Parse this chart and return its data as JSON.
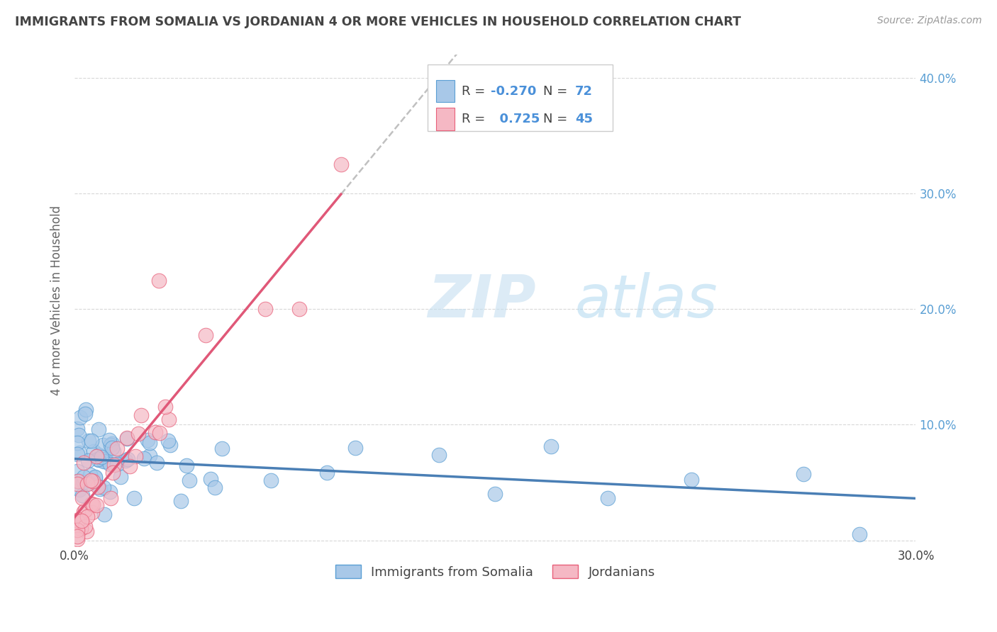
{
  "title": "IMMIGRANTS FROM SOMALIA VS JORDANIAN 4 OR MORE VEHICLES IN HOUSEHOLD CORRELATION CHART",
  "source_text": "Source: ZipAtlas.com",
  "ylabel": "4 or more Vehicles in Household",
  "xlim": [
    0.0,
    0.3
  ],
  "ylim": [
    -0.005,
    0.42
  ],
  "color_somalia": "#a8c8e8",
  "color_somalia_edge": "#5b9fd4",
  "color_jordan": "#f5b8c4",
  "color_jordan_edge": "#e8607a",
  "color_line_somalia": "#4a7fb5",
  "color_line_jordan": "#e05878",
  "color_trend_ext": "#c0c0c0",
  "background_color": "#ffffff",
  "watermark_color": "#ddeef8",
  "grid_color": "#d8d8d8",
  "tick_color": "#5a9fd4",
  "title_color": "#444444",
  "ylabel_color": "#666666"
}
